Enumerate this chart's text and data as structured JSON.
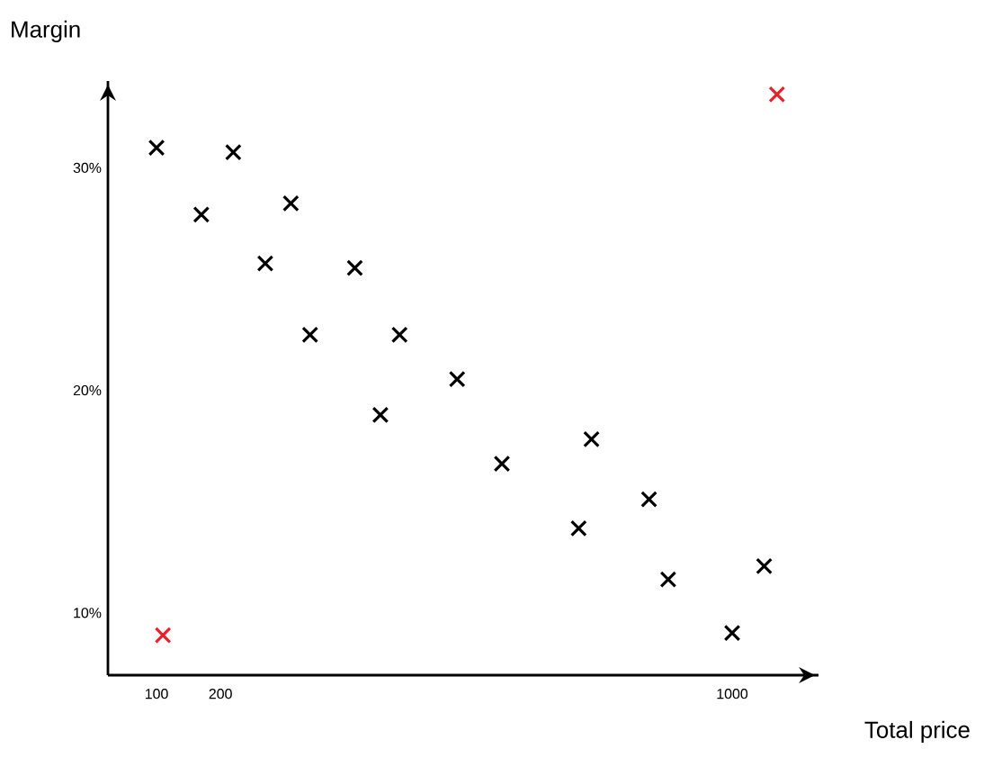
{
  "chart_data": {
    "type": "scatter",
    "xlabel": "Total price",
    "ylabel": "Margin",
    "marker": "cross",
    "xlim": [
      24,
      1135
    ],
    "ylim": [
      7.2,
      33.9
    ],
    "xticks": [
      100,
      200,
      1000
    ],
    "yticks": [
      {
        "value": 10,
        "label": "10%"
      },
      {
        "value": 20,
        "label": "20%"
      },
      {
        "value": 30,
        "label": "30%"
      }
    ],
    "series": [
      {
        "color": "#000000",
        "x": [
          100,
          170,
          220,
          270,
          310,
          340,
          410,
          450,
          480,
          570,
          640,
          760,
          780,
          870,
          900,
          1000,
          1050
        ],
        "values": [
          30.9,
          27.9,
          30.7,
          25.7,
          28.4,
          22.5,
          25.5,
          18.9,
          22.5,
          20.5,
          16.7,
          13.8,
          17.8,
          15.1,
          11.5,
          9.1,
          12.1
        ]
      },
      {
        "color": "#e8202a",
        "x": [
          110,
          1070
        ],
        "values": [
          9.0,
          33.3
        ]
      }
    ]
  }
}
